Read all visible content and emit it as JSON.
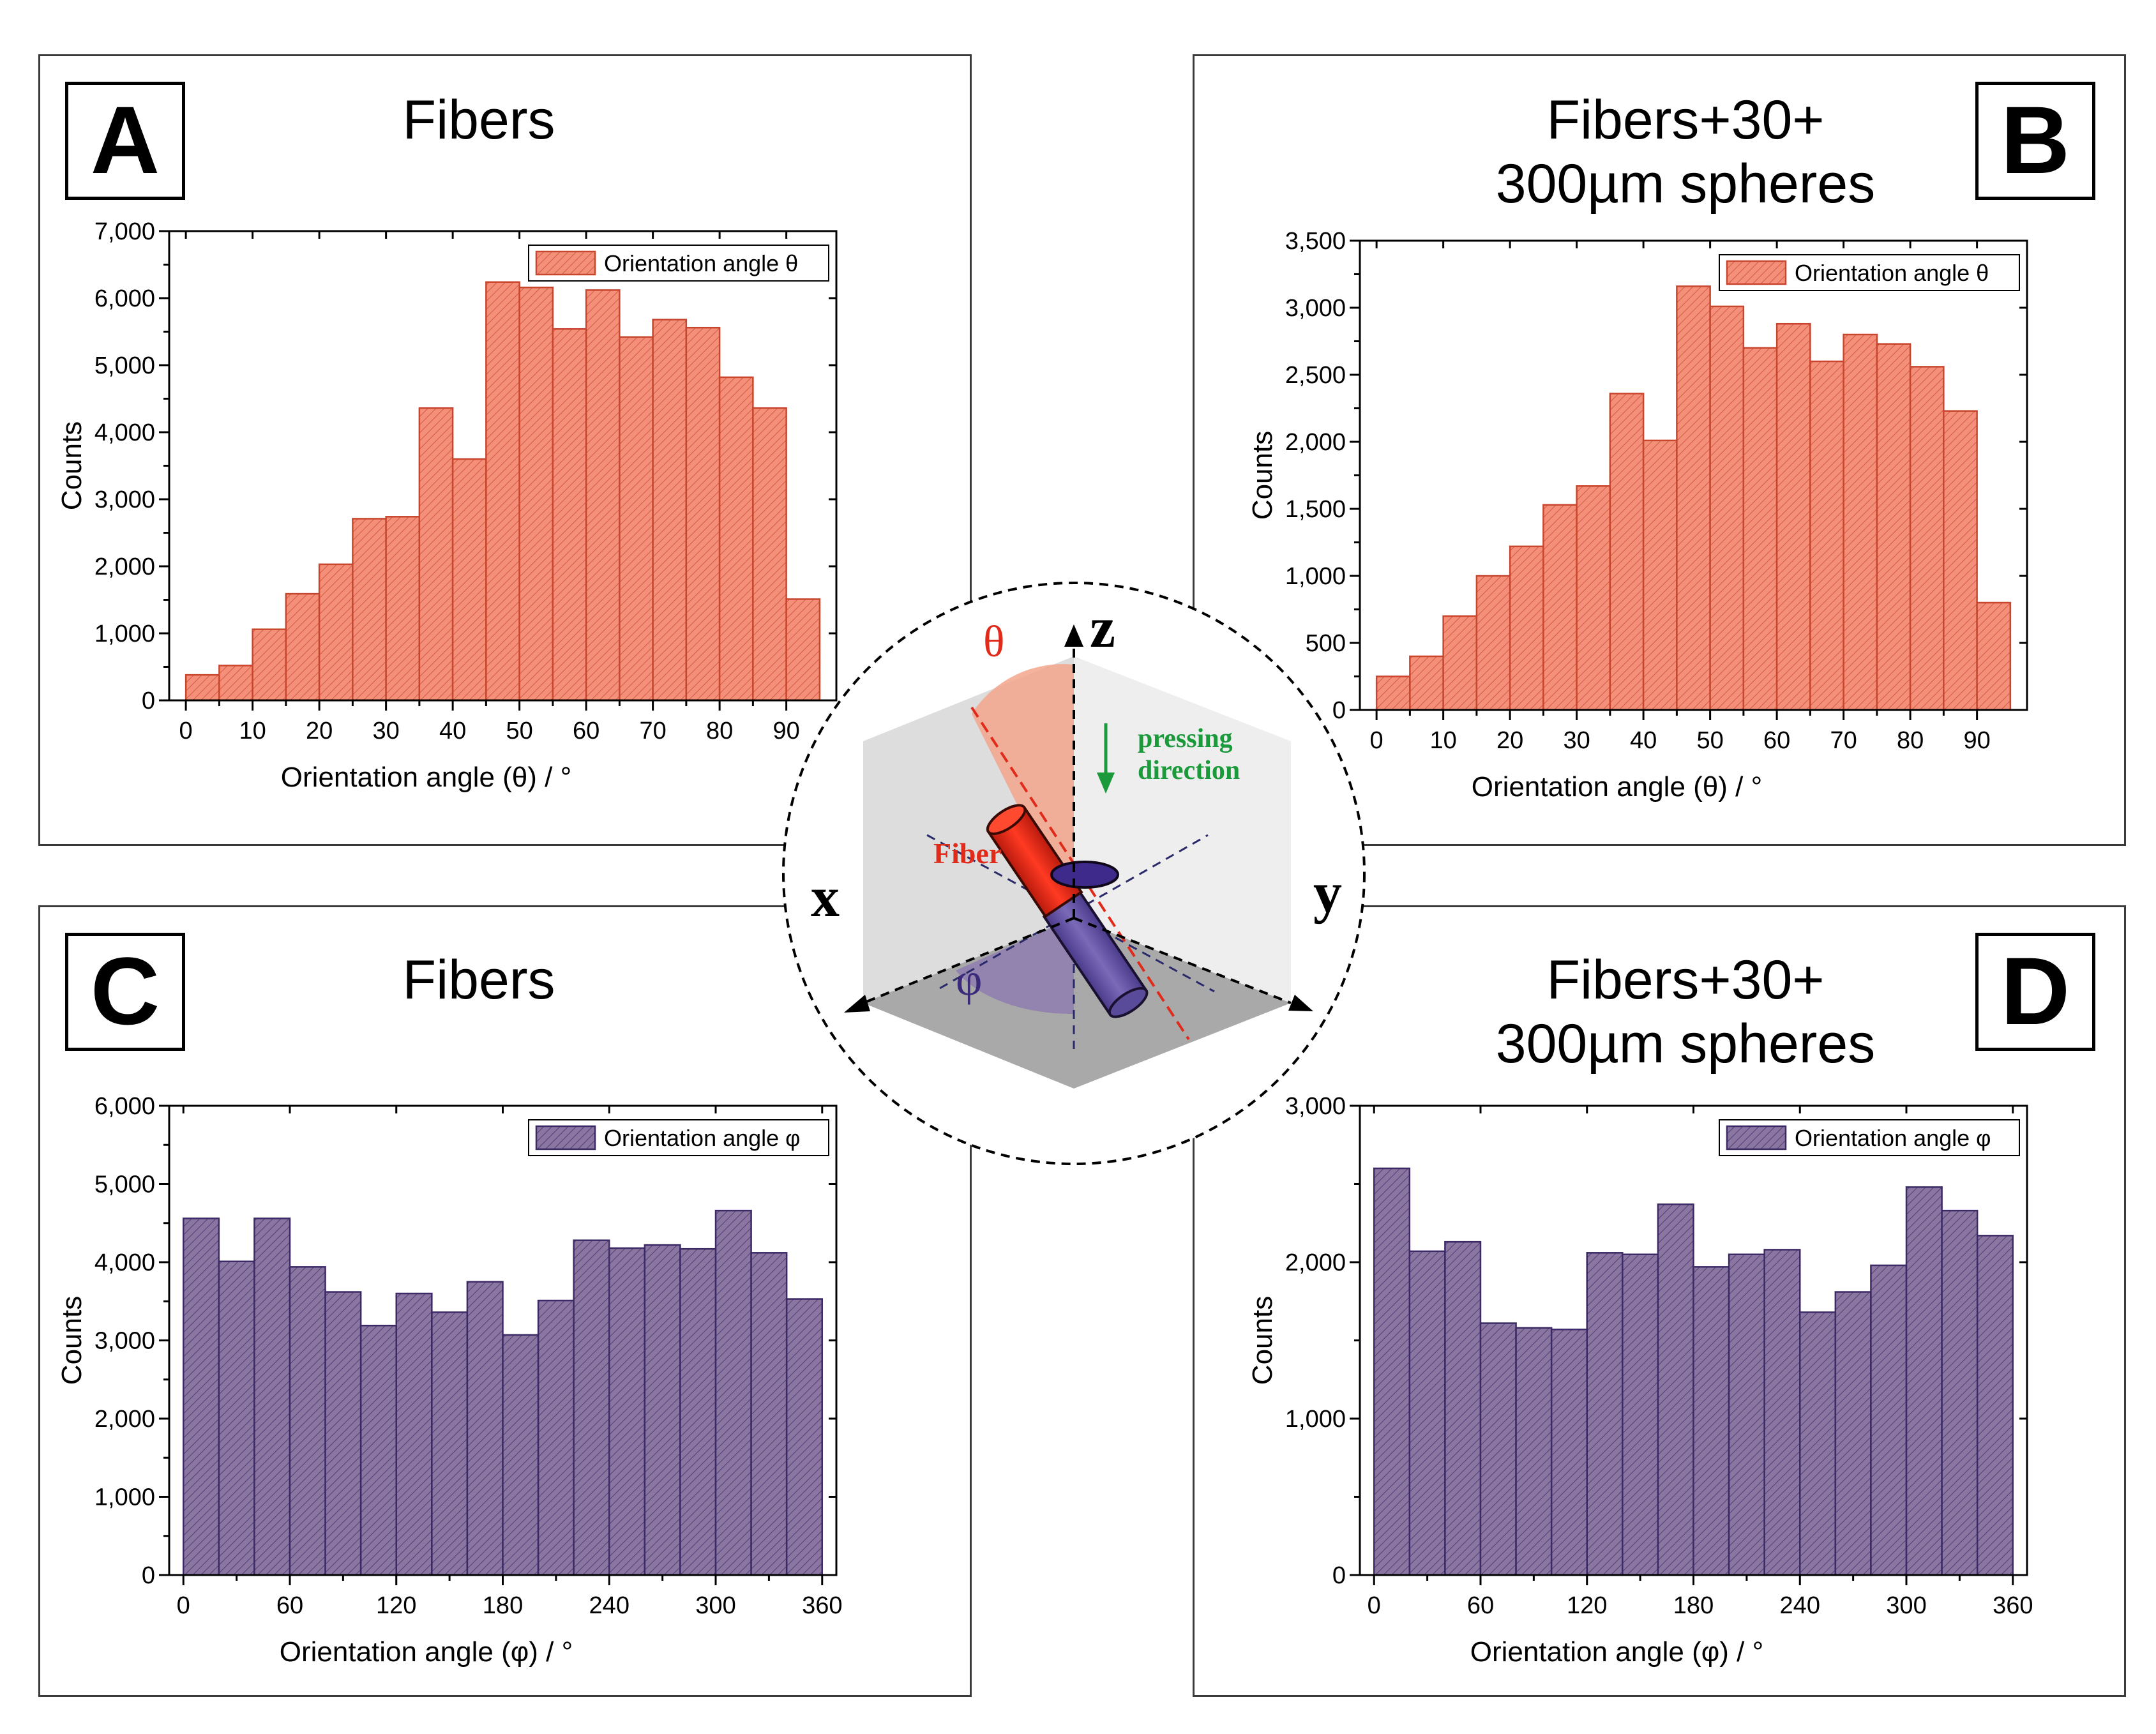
{
  "colors": {
    "theta": "#f4907a",
    "theta_edge": "#c8462e",
    "phi": "#8a76a0",
    "phi_edge": "#3c2a66",
    "fiber_red": "#e02a1a",
    "pressing_green": "#1a9a3a",
    "phi_label": "#3b2a7a"
  },
  "panels": [
    {
      "letter": "A",
      "title_lines": [
        "Fibers"
      ],
      "chart_data": {
        "type": "bar",
        "variable": "theta",
        "bins_start": [
          0,
          5,
          10,
          15,
          20,
          25,
          30,
          35,
          40,
          45,
          50,
          55,
          60,
          65,
          70,
          75,
          80,
          85,
          90
        ],
        "bin_width": 5,
        "values": [
          380,
          520,
          1060,
          1590,
          2030,
          2710,
          2740,
          4360,
          3600,
          6240,
          6160,
          5540,
          6120,
          5420,
          5680,
          5560,
          4820,
          4360,
          1510
        ],
        "xlim": [
          -2.5,
          97.5
        ],
        "ylim": [
          0,
          7000
        ],
        "xticks": [
          0,
          10,
          20,
          30,
          40,
          50,
          60,
          70,
          80,
          90
        ],
        "xtick_labels": [
          "0",
          "10",
          "20",
          "30",
          "40",
          "50",
          "60",
          "70",
          "80",
          "90"
        ],
        "yticks": [
          0,
          1000,
          2000,
          3000,
          4000,
          5000,
          6000,
          7000
        ],
        "ytick_labels": [
          "0",
          "1,000",
          "2,000",
          "3,000",
          "4,000",
          "5,000",
          "6,000",
          "7,000"
        ],
        "xlabel": "Orientation angle (θ) / °",
        "ylabel": "Counts",
        "legend": "Orientation angle θ",
        "legend_position": "top-right"
      }
    },
    {
      "letter": "B",
      "title_lines": [
        "Fibers+30+",
        "300µm spheres"
      ],
      "chart_data": {
        "type": "bar",
        "variable": "theta",
        "bins_start": [
          0,
          5,
          10,
          15,
          20,
          25,
          30,
          35,
          40,
          45,
          50,
          55,
          60,
          65,
          70,
          75,
          80,
          85,
          90
        ],
        "bin_width": 5,
        "values": [
          250,
          400,
          700,
          1000,
          1220,
          1530,
          1670,
          2360,
          2010,
          3160,
          3010,
          2700,
          2880,
          2600,
          2800,
          2730,
          2560,
          2230,
          800
        ],
        "xlim": [
          -2.5,
          97.5
        ],
        "ylim": [
          0,
          3500
        ],
        "xticks": [
          0,
          10,
          20,
          30,
          40,
          50,
          60,
          70,
          80,
          90
        ],
        "xtick_labels": [
          "0",
          "10",
          "20",
          "30",
          "40",
          "50",
          "60",
          "70",
          "80",
          "90"
        ],
        "yticks": [
          0,
          500,
          1000,
          1500,
          2000,
          2500,
          3000,
          3500
        ],
        "ytick_labels": [
          "0",
          "500",
          "1,000",
          "1,500",
          "2,000",
          "2,500",
          "3,000",
          "3,500"
        ],
        "xlabel": "Orientation angle (θ) / °",
        "ylabel": "Counts",
        "legend": "Orientation angle θ",
        "legend_position": "top-right"
      }
    },
    {
      "letter": "C",
      "title_lines": [
        "Fibers"
      ],
      "chart_data": {
        "type": "bar",
        "variable": "phi",
        "bins_start": [
          0,
          20,
          40,
          60,
          80,
          100,
          120,
          140,
          160,
          180,
          200,
          220,
          240,
          260,
          280,
          300,
          320,
          340
        ],
        "bin_width": 20,
        "values": [
          4560,
          4010,
          4560,
          3940,
          3620,
          3190,
          3600,
          3360,
          3750,
          3070,
          3510,
          4280,
          4180,
          4220,
          4170,
          4660,
          4120,
          3530
        ],
        "xlim": [
          -8,
          368
        ],
        "ylim": [
          0,
          6000
        ],
        "xticks": [
          0,
          60,
          120,
          180,
          240,
          300,
          360
        ],
        "xtick_labels": [
          "0",
          "60",
          "120",
          "180",
          "240",
          "300",
          "360"
        ],
        "yticks": [
          0,
          1000,
          2000,
          3000,
          4000,
          5000,
          6000
        ],
        "ytick_labels": [
          "0",
          "1,000",
          "2,000",
          "3,000",
          "4,000",
          "5,000",
          "6,000"
        ],
        "xlabel": "Orientation angle (φ) / °",
        "ylabel": "Counts",
        "legend": "Orientation angle φ",
        "legend_position": "top-right"
      }
    },
    {
      "letter": "D",
      "title_lines": [
        "Fibers+30+",
        "300µm spheres"
      ],
      "chart_data": {
        "type": "bar",
        "variable": "phi",
        "bins_start": [
          0,
          20,
          40,
          60,
          80,
          100,
          120,
          140,
          160,
          180,
          200,
          220,
          240,
          260,
          280,
          300,
          320,
          340
        ],
        "bin_width": 20,
        "values": [
          2600,
          2070,
          2130,
          1610,
          1580,
          1570,
          2060,
          2050,
          2370,
          1970,
          2050,
          2080,
          1680,
          1810,
          1980,
          2480,
          2330,
          2170
        ],
        "xlim": [
          -8,
          368
        ],
        "ylim": [
          0,
          3000
        ],
        "xticks": [
          0,
          60,
          120,
          180,
          240,
          300,
          360
        ],
        "xtick_labels": [
          "0",
          "60",
          "120",
          "180",
          "240",
          "300",
          "360"
        ],
        "yticks": [
          0,
          1000,
          2000,
          3000
        ],
        "ytick_labels": [
          "0",
          "1,000",
          "2,000",
          "3,000"
        ],
        "xlabel": "Orientation angle (φ) / °",
        "ylabel": "Counts",
        "legend": "Orientation angle φ",
        "legend_position": "top-right"
      }
    }
  ],
  "diagram": {
    "axis_z": "z",
    "axis_x": "x",
    "axis_y": "y",
    "theta_label": "θ",
    "phi_label": "φ",
    "fiber_label": "Fiber",
    "pressing_line1": "pressing",
    "pressing_line2": "direction"
  }
}
